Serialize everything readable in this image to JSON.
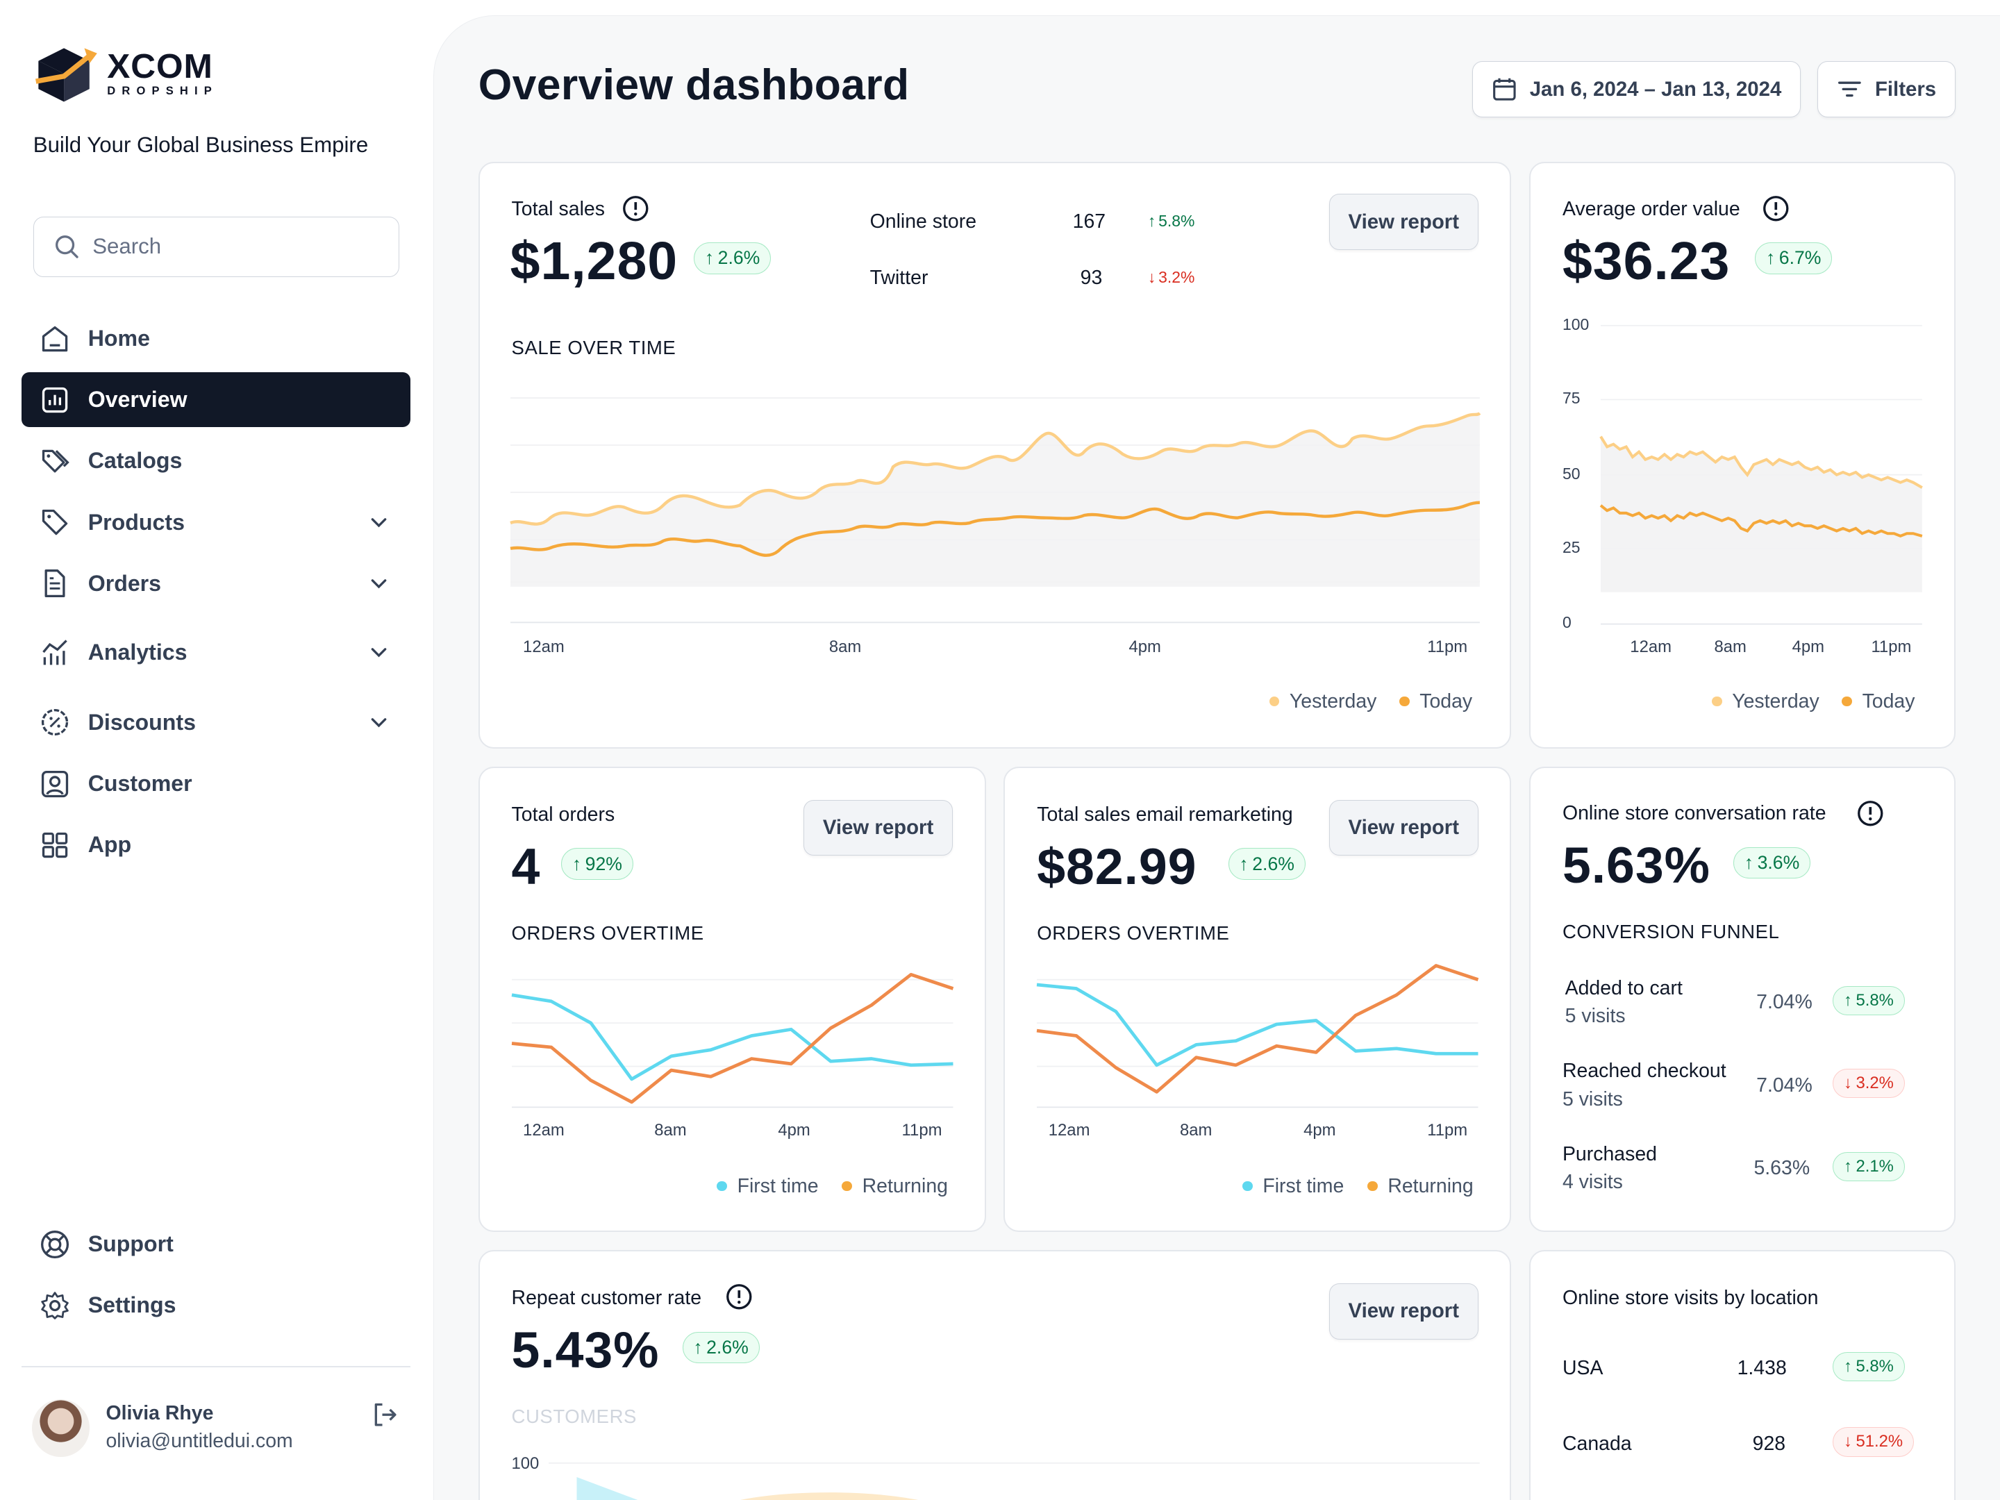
{
  "brand": {
    "name": "XCOM",
    "sub": "DROPSHIP",
    "tagline": "Build Your Global Business Empire"
  },
  "search": {
    "placeholder": "Search"
  },
  "nav": {
    "home": "Home",
    "overview": "Overview",
    "catalogs": "Catalogs",
    "products": "Products",
    "orders": "Orders",
    "analytics": "Analytics",
    "discounts": "Discounts",
    "customer": "Customer",
    "app": "App",
    "support": "Support",
    "settings": "Settings"
  },
  "user": {
    "name": "Olivia Rhye",
    "email": "olivia@untitledui.com"
  },
  "header": {
    "title": "Overview dashboard",
    "date_range": "Jan 6, 2024 – Jan 13, 2024",
    "filters": "Filters"
  },
  "colors": {
    "yesterday": "#fccf86",
    "today": "#f5a83a",
    "first_time": "#5ed8ef",
    "returning": "#ef8a4a",
    "green": "#067647",
    "red": "#d92d20"
  },
  "total_sales": {
    "label": "Total sales",
    "value": "$1,280",
    "change": "2.6%",
    "view_report": "View report",
    "channels": [
      {
        "name": "Online store",
        "count": "167",
        "change": "5.8%",
        "dir": "up"
      },
      {
        "name": "Twitter",
        "count": "93",
        "change": "3.2%",
        "dir": "down"
      }
    ],
    "section": "SALE OVER TIME",
    "x_ticks": [
      "12am",
      "8am",
      "4pm",
      "11pm"
    ],
    "legend": [
      "Yesterday",
      "Today"
    ]
  },
  "aov": {
    "label": "Average order value",
    "value": "$36.23",
    "change": "6.7%",
    "y_ticks": [
      "100",
      "75",
      "50",
      "25",
      "0"
    ],
    "x_ticks": [
      "12am",
      "8am",
      "4pm",
      "11pm"
    ],
    "legend": [
      "Yesterday",
      "Today"
    ]
  },
  "total_orders": {
    "label": "Total orders",
    "value": "4",
    "change": "92%",
    "view_report": "View report",
    "section": "ORDERS OVERTIME",
    "x_ticks": [
      "12am",
      "8am",
      "4pm",
      "11pm"
    ],
    "legend": [
      "First time",
      "Returning"
    ]
  },
  "email_sales": {
    "label": "Total sales email remarketing",
    "value": "$82.99",
    "change": "2.6%",
    "view_report": "View report",
    "section": "ORDERS OVERTIME",
    "x_ticks": [
      "12am",
      "8am",
      "4pm",
      "11pm"
    ],
    "legend": [
      "First time",
      "Returning"
    ]
  },
  "conversion": {
    "label": "Online store conversation rate",
    "value": "5.63%",
    "change": "3.6%",
    "section": "CONVERSION FUNNEL",
    "rows": [
      {
        "name": "Added to cart",
        "visits": "5 visits",
        "rate": "7.04%",
        "change": "5.8%",
        "dir": "up"
      },
      {
        "name": "Reached checkout",
        "visits": "5 visits",
        "rate": "7.04%",
        "change": "3.2%",
        "dir": "down"
      },
      {
        "name": "Purchased",
        "visits": "4 visits",
        "rate": "5.63%",
        "change": "2.1%",
        "dir": "up"
      }
    ]
  },
  "repeat": {
    "label": "Repeat customer rate",
    "value": "5.43%",
    "change": "2.6%",
    "view_report": "View report",
    "section": "CUSTOMERS",
    "y_tick": "100"
  },
  "location": {
    "label": "Online store visits by location",
    "rows": [
      {
        "name": "USA",
        "count": "1.438",
        "change": "5.8%",
        "dir": "up"
      },
      {
        "name": "Canada",
        "count": "928",
        "change": "51.2%",
        "dir": "down"
      }
    ]
  }
}
